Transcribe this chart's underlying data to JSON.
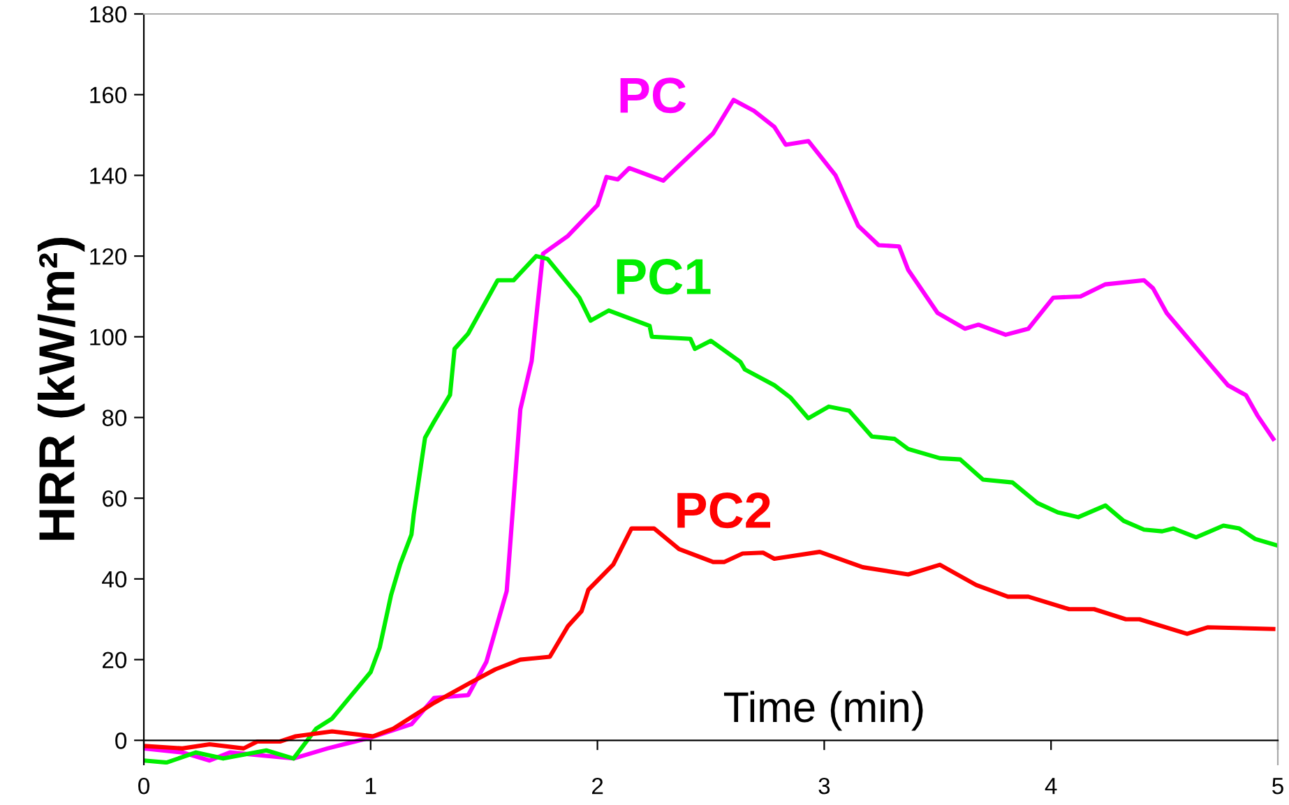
{
  "chart_data": {
    "type": "line",
    "ylabel": "HRR (kW/m²)",
    "annotations": [
      "Time (min)"
    ],
    "xlim": [
      0,
      5
    ],
    "xticks": [
      0,
      1,
      2,
      3,
      4,
      5
    ],
    "ylim": [
      -6,
      180
    ],
    "yticks": [
      0,
      20,
      40,
      60,
      80,
      100,
      120,
      140,
      160,
      180
    ],
    "grid": false,
    "legend": false,
    "line_style": "solid",
    "marker": "none",
    "series": [
      {
        "name": "PC",
        "color": "#ff00ff",
        "x": [
          0,
          0.17,
          0.29,
          0.38,
          0.66,
          0.81,
          1.0,
          1.18,
          1.28,
          1.43,
          1.51,
          1.6,
          1.66,
          1.71,
          1.76,
          1.87,
          2.0,
          2.04,
          2.09,
          2.14,
          2.29,
          2.51,
          2.6,
          2.69,
          2.78,
          2.83,
          2.93,
          3.05,
          3.15,
          3.24,
          3.33,
          3.37,
          3.5,
          3.62,
          3.68,
          3.8,
          3.9,
          4.01,
          4.13,
          4.24,
          4.41,
          4.45,
          4.51,
          4.71,
          4.78,
          4.86,
          4.91,
          4.98
        ],
        "values": [
          -2,
          -3,
          -5,
          -3,
          -4.5,
          -2,
          0.7,
          4,
          10.5,
          11.2,
          19.4,
          37,
          82,
          94,
          120.6,
          125,
          132.6,
          139.6,
          139,
          141.8,
          138.7,
          150.4,
          158.7,
          156,
          152,
          147.6,
          148.5,
          140,
          127.5,
          122.7,
          122.4,
          116.6,
          105.9,
          102,
          103,
          100.5,
          102,
          109.7,
          110,
          113,
          114,
          112,
          105.9,
          92.6,
          88,
          85.5,
          80.5,
          74.7
        ]
      },
      {
        "name": "PC1",
        "color": "#00ee00",
        "x": [
          0,
          0.1,
          0.23,
          0.35,
          0.54,
          0.66,
          0.76,
          0.83,
          1.0,
          1.04,
          1.09,
          1.13,
          1.18,
          1.19,
          1.24,
          1.28,
          1.35,
          1.37,
          1.43,
          1.56,
          1.63,
          1.73,
          1.78,
          1.92,
          1.97,
          2.05,
          2.23,
          2.24,
          2.41,
          2.43,
          2.5,
          2.63,
          2.65,
          2.78,
          2.85,
          2.93,
          3.02,
          3.11,
          3.21,
          3.31,
          3.37,
          3.51,
          3.6,
          3.7,
          3.83,
          3.94,
          4.03,
          4.12,
          4.24,
          4.32,
          4.41,
          4.49,
          4.54,
          4.64,
          4.76,
          4.83,
          4.9,
          4.99
        ],
        "values": [
          -5,
          -5.5,
          -3,
          -4.5,
          -2.5,
          -4.5,
          2.9,
          5.4,
          16.9,
          23,
          36,
          43.6,
          51,
          56,
          75,
          79,
          85.6,
          97,
          100.8,
          114,
          114,
          120,
          119.3,
          109.7,
          104,
          106.5,
          102.7,
          100,
          99.5,
          97,
          99,
          93.8,
          91.9,
          88,
          85,
          79.8,
          82.7,
          81.7,
          75.3,
          74.7,
          72.2,
          69.9,
          69.6,
          64.6,
          63.9,
          58.8,
          56.5,
          55.3,
          58.2,
          54.4,
          52.2,
          51.8,
          52.5,
          50.3,
          53.2,
          52.5,
          49.9,
          48.4
        ]
      },
      {
        "name": "PC2",
        "color": "#ff0000",
        "x": [
          0,
          0.17,
          0.29,
          0.44,
          0.5,
          0.6,
          0.67,
          0.83,
          1.01,
          1.1,
          1.28,
          1.44,
          1.55,
          1.66,
          1.79,
          1.87,
          1.93,
          1.96,
          2.07,
          2.15,
          2.25,
          2.36,
          2.51,
          2.56,
          2.64,
          2.73,
          2.78,
          2.98,
          3.17,
          3.37,
          3.51,
          3.67,
          3.81,
          3.9,
          4.08,
          4.19,
          4.33,
          4.39,
          4.6,
          4.69,
          4.98
        ],
        "values": [
          -1.4,
          -2,
          -1,
          -2,
          -0.3,
          -0.3,
          1,
          2.2,
          1,
          2.9,
          9.3,
          14.3,
          17.6,
          20,
          20.7,
          28.3,
          32,
          37.3,
          43.6,
          52.5,
          52.5,
          47.4,
          44.2,
          44.2,
          46.3,
          46.5,
          45,
          46.7,
          42.9,
          41.1,
          43.5,
          38.5,
          35.6,
          35.6,
          32.5,
          32.5,
          30,
          30,
          26.4,
          28,
          27.6
        ]
      }
    ]
  }
}
